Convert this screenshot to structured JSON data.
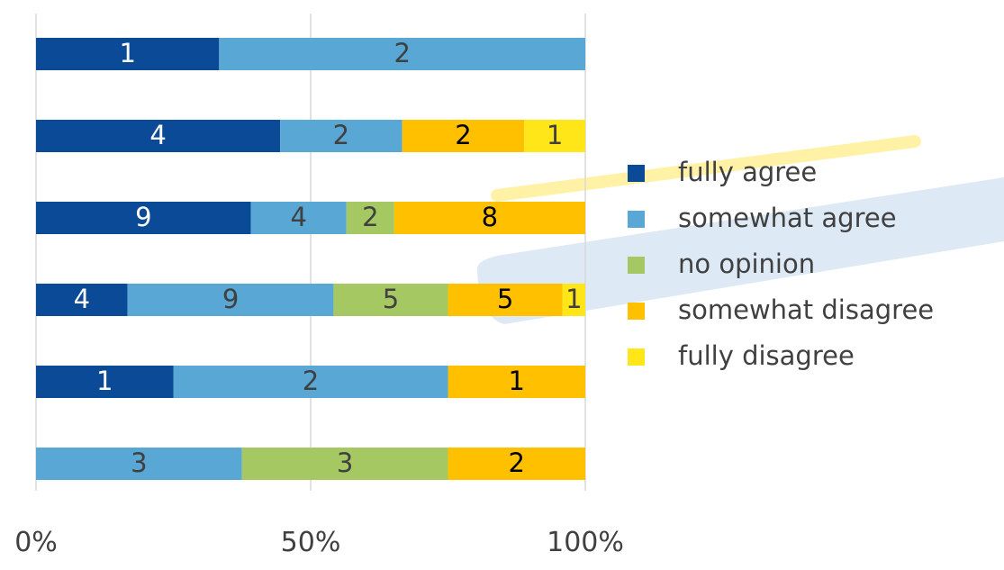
{
  "chart_data": {
    "type": "bar",
    "orientation": "horizontal",
    "stacking": "percent",
    "xlim": [
      0,
      100
    ],
    "x_ticks": [
      "0%",
      "50%",
      "100%"
    ],
    "grid": true,
    "legend_position": "right",
    "rows": [
      {
        "values": [
          1,
          2,
          0,
          0,
          0
        ]
      },
      {
        "values": [
          4,
          2,
          0,
          2,
          1
        ]
      },
      {
        "values": [
          9,
          4,
          2,
          8,
          0
        ]
      },
      {
        "values": [
          4,
          9,
          5,
          5,
          1
        ]
      },
      {
        "values": [
          1,
          2,
          0,
          1,
          0
        ]
      },
      {
        "values": [
          0,
          3,
          3,
          2,
          0
        ]
      }
    ],
    "series": [
      {
        "name": "fully agree",
        "color": "#0b4a96",
        "label_color": "#ffffff"
      },
      {
        "name": "somewhat agree",
        "color": "#58a7d4",
        "label_color": "#404040"
      },
      {
        "name": "no opinion",
        "color": "#a6c862",
        "label_color": "#404040"
      },
      {
        "name": "somewhat disagree",
        "color": "#ffc000",
        "label_color": "#000000"
      },
      {
        "name": "fully disagree",
        "color": "#ffe619",
        "label_color": "#404040"
      }
    ],
    "gridline_color": "#d9d9d9",
    "tick_label_color": "#404040",
    "legend_text_color": "#404040",
    "decoration_colors": {
      "yellow_stroke": "#fff2a6",
      "blue_stroke": "#dde9f5"
    }
  }
}
